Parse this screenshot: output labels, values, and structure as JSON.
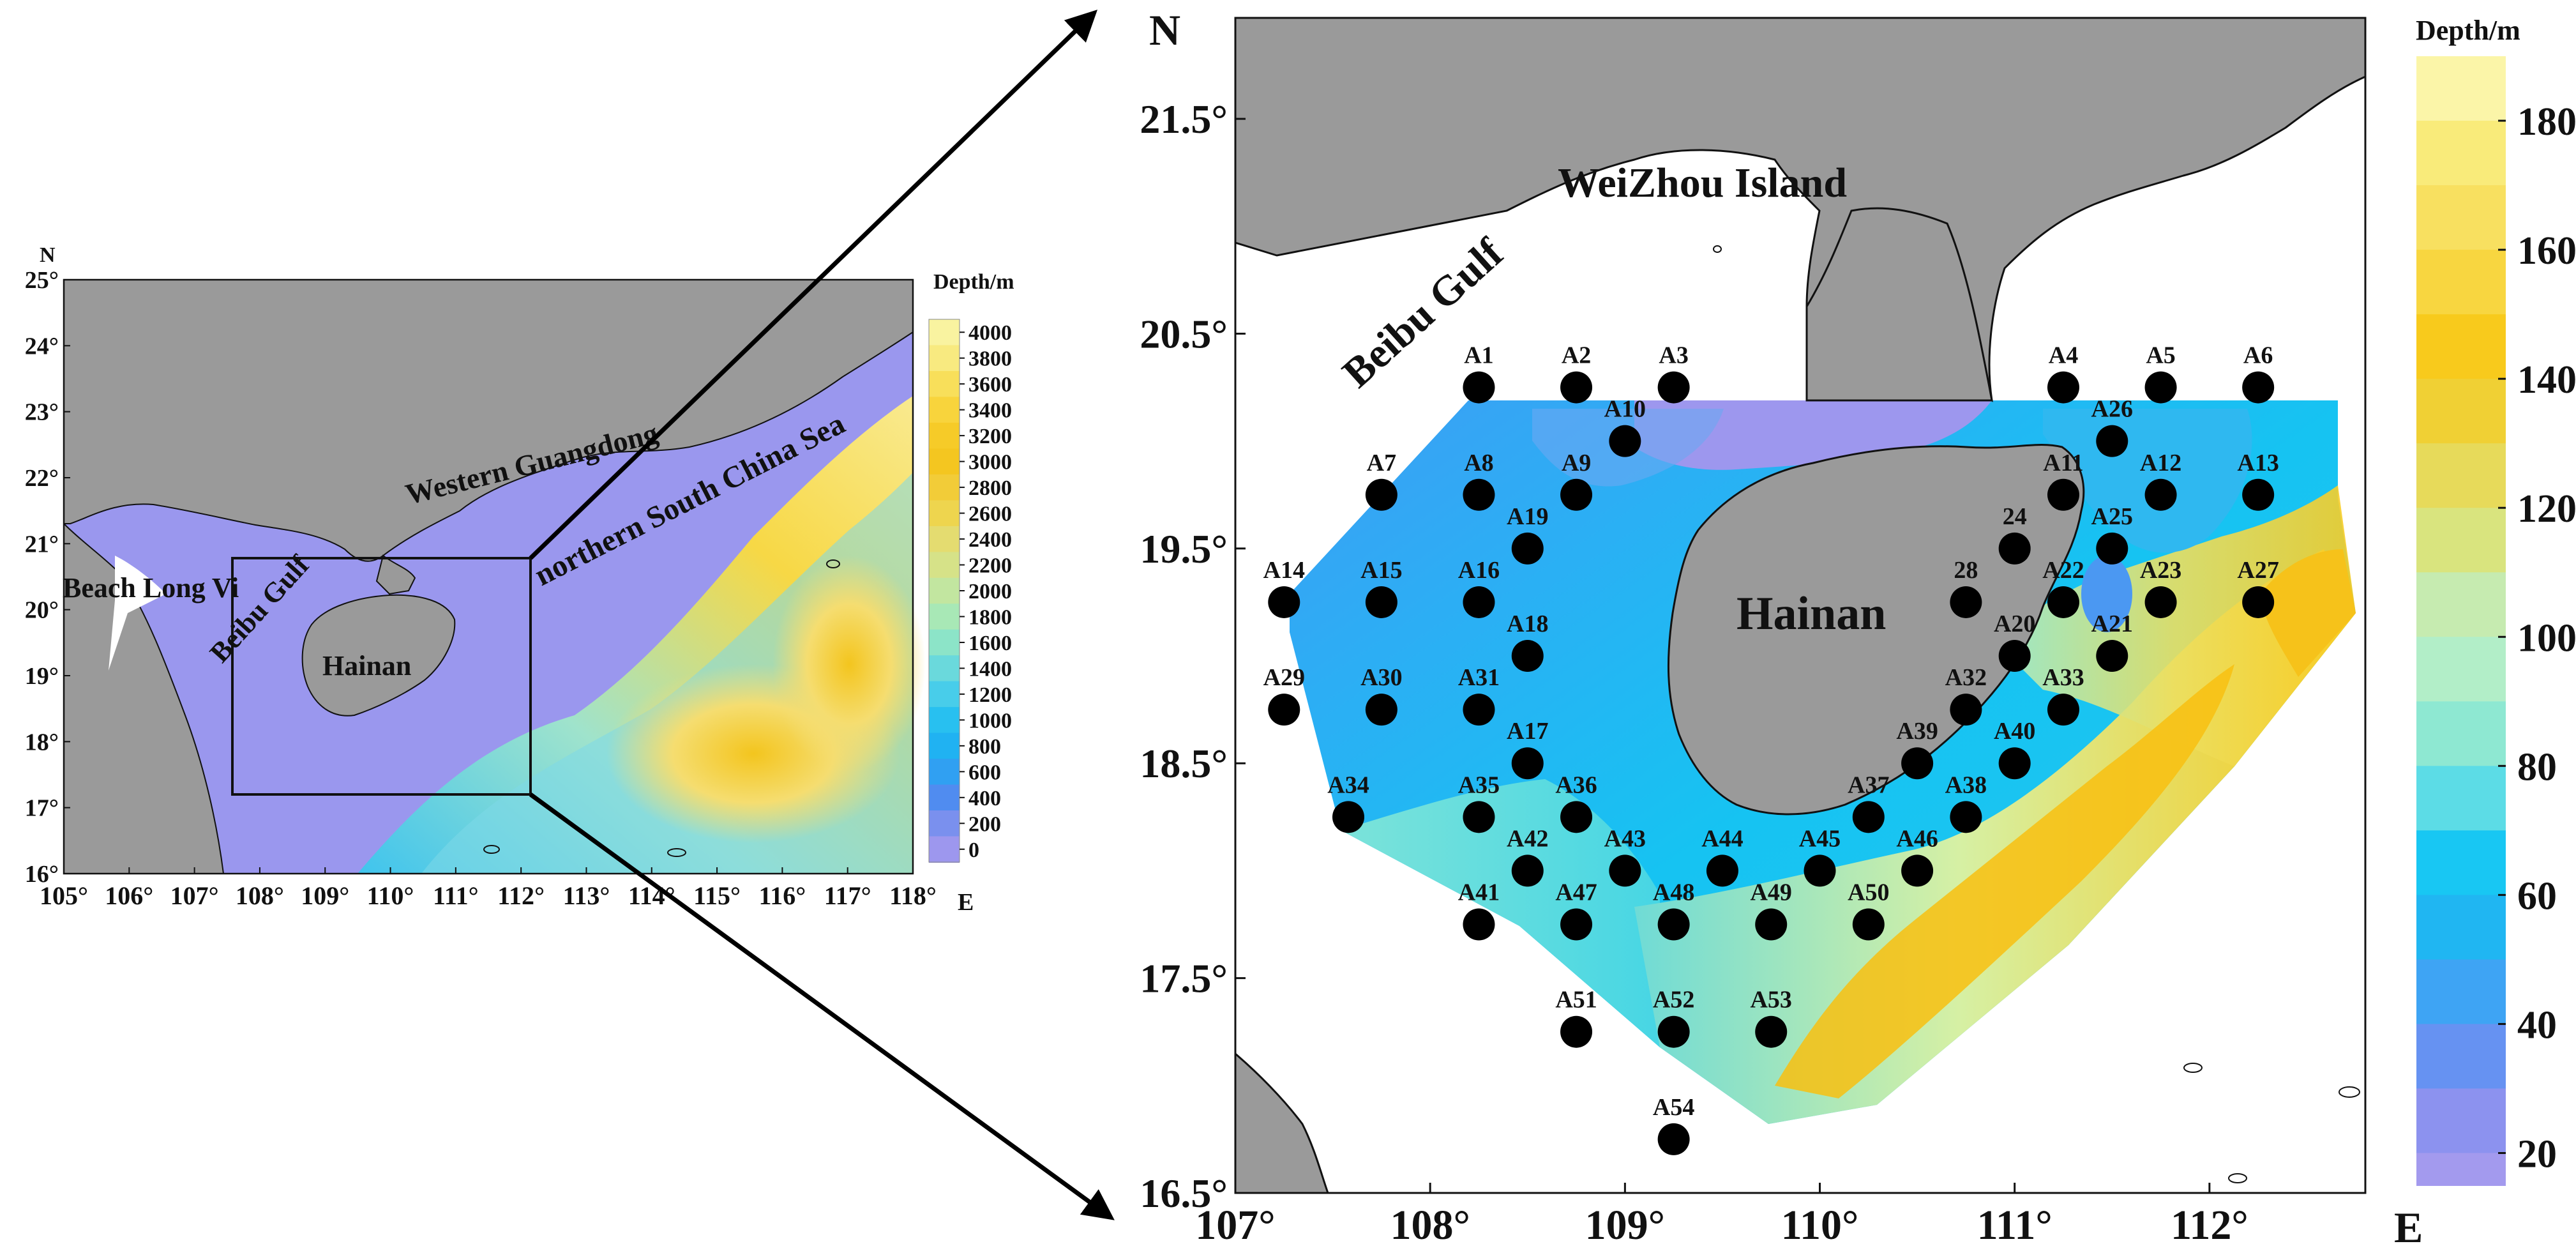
{
  "overview_map": {
    "north_label": "N",
    "east_label": "E",
    "x_ticks": [
      "105°",
      "106°",
      "107°",
      "108°",
      "109°",
      "110°",
      "111°",
      "112°",
      "113°",
      "114°",
      "115°",
      "116°",
      "117°",
      "118°"
    ],
    "y_ticks": [
      "25°",
      "24°",
      "23°",
      "22°",
      "21°",
      "20°",
      "19°",
      "18°",
      "17°",
      "16°"
    ],
    "labels": {
      "beach": "Beach Long Vi",
      "gulf": "Beibu Gulf",
      "island": "Hainan",
      "guangdong": "Western Guangdong",
      "scs": "northern South China Sea"
    },
    "colorbar": {
      "title": "Depth/m",
      "ticks": [
        "4000",
        "3800",
        "3600",
        "3400",
        "3200",
        "3000",
        "2800",
        "2600",
        "2400",
        "2200",
        "2000",
        "1800",
        "1600",
        "1400",
        "1200",
        "1000",
        "800",
        "600",
        "400",
        "200",
        "0"
      ]
    }
  },
  "detail_map": {
    "north_label": "N",
    "east_label": "E",
    "x_ticks": [
      "107°",
      "108°",
      "109°",
      "110°",
      "111°",
      "112°"
    ],
    "y_ticks": [
      "21.5°",
      "20.5°",
      "19.5°",
      "18.5°",
      "17.5°",
      "16.5°"
    ],
    "labels": {
      "gulf": "Beibu Gulf",
      "weizhou": "WeiZhou Island",
      "island": "Hainan"
    },
    "colorbar": {
      "title": "Depth/m",
      "ticks": [
        "180",
        "160",
        "140",
        "120",
        "100",
        "80",
        "60",
        "40",
        "20"
      ]
    },
    "stations": [
      {
        "label": "A1",
        "lon": 108.25,
        "lat": 20.25
      },
      {
        "label": "A2",
        "lon": 108.75,
        "lat": 20.25
      },
      {
        "label": "A3",
        "lon": 109.25,
        "lat": 20.25
      },
      {
        "label": "A4",
        "lon": 111.25,
        "lat": 20.25
      },
      {
        "label": "A5",
        "lon": 111.75,
        "lat": 20.25
      },
      {
        "label": "A6",
        "lon": 112.25,
        "lat": 20.25
      },
      {
        "label": "A10",
        "lon": 109.0,
        "lat": 20.0
      },
      {
        "label": "A26",
        "lon": 111.5,
        "lat": 20.0
      },
      {
        "label": "A7",
        "lon": 107.75,
        "lat": 19.75
      },
      {
        "label": "A8",
        "lon": 108.25,
        "lat": 19.75
      },
      {
        "label": "A9",
        "lon": 108.75,
        "lat": 19.75
      },
      {
        "label": "A11",
        "lon": 111.25,
        "lat": 19.75
      },
      {
        "label": "A12",
        "lon": 111.75,
        "lat": 19.75
      },
      {
        "label": "A13",
        "lon": 112.25,
        "lat": 19.75
      },
      {
        "label": "A19",
        "lon": 108.5,
        "lat": 19.5
      },
      {
        "label": "24",
        "lon": 111.0,
        "lat": 19.5
      },
      {
        "label": "A25",
        "lon": 111.5,
        "lat": 19.5
      },
      {
        "label": "A14",
        "lon": 107.25,
        "lat": 19.25
      },
      {
        "label": "A15",
        "lon": 107.75,
        "lat": 19.25
      },
      {
        "label": "A16",
        "lon": 108.25,
        "lat": 19.25
      },
      {
        "label": "28",
        "lon": 110.75,
        "lat": 19.25
      },
      {
        "label": "A22",
        "lon": 111.25,
        "lat": 19.25
      },
      {
        "label": "A23",
        "lon": 111.75,
        "lat": 19.25
      },
      {
        "label": "A27",
        "lon": 112.25,
        "lat": 19.25
      },
      {
        "label": "A18",
        "lon": 108.5,
        "lat": 19.0
      },
      {
        "label": "A20",
        "lon": 111.0,
        "lat": 19.0
      },
      {
        "label": "A21",
        "lon": 111.5,
        "lat": 19.0
      },
      {
        "label": "A29",
        "lon": 107.25,
        "lat": 18.75
      },
      {
        "label": "A30",
        "lon": 107.75,
        "lat": 18.75
      },
      {
        "label": "A31",
        "lon": 108.25,
        "lat": 18.75
      },
      {
        "label": "A32",
        "lon": 110.75,
        "lat": 18.75
      },
      {
        "label": "A33",
        "lon": 111.25,
        "lat": 18.75
      },
      {
        "label": "A17",
        "lon": 108.5,
        "lat": 18.5
      },
      {
        "label": "A39",
        "lon": 110.5,
        "lat": 18.5
      },
      {
        "label": "A40",
        "lon": 111.0,
        "lat": 18.5
      },
      {
        "label": "A34",
        "lon": 107.58,
        "lat": 18.25
      },
      {
        "label": "A35",
        "lon": 108.25,
        "lat": 18.25
      },
      {
        "label": "A36",
        "lon": 108.75,
        "lat": 18.25
      },
      {
        "label": "A37",
        "lon": 110.25,
        "lat": 18.25
      },
      {
        "label": "A38",
        "lon": 110.75,
        "lat": 18.25
      },
      {
        "label": "A42",
        "lon": 108.5,
        "lat": 18.0
      },
      {
        "label": "A43",
        "lon": 109.0,
        "lat": 18.0
      },
      {
        "label": "A44",
        "lon": 109.5,
        "lat": 18.0
      },
      {
        "label": "A45",
        "lon": 110.0,
        "lat": 18.0
      },
      {
        "label": "A46",
        "lon": 110.5,
        "lat": 18.0
      },
      {
        "label": "A41",
        "lon": 108.25,
        "lat": 17.75
      },
      {
        "label": "A47",
        "lon": 108.75,
        "lat": 17.75
      },
      {
        "label": "A48",
        "lon": 109.25,
        "lat": 17.75
      },
      {
        "label": "A49",
        "lon": 109.75,
        "lat": 17.75
      },
      {
        "label": "A50",
        "lon": 110.25,
        "lat": 17.75
      },
      {
        "label": "A51",
        "lon": 108.75,
        "lat": 17.25
      },
      {
        "label": "A52",
        "lon": 109.25,
        "lat": 17.25
      },
      {
        "label": "A53",
        "lon": 109.75,
        "lat": 17.25
      },
      {
        "label": "A54",
        "lon": 109.25,
        "lat": 16.75
      }
    ]
  },
  "colors": {
    "land": "#9a9a9a",
    "sea_shallow": "#9a97ee",
    "sea_mid": "#22c3ee",
    "sea_deep": "#fbd02a",
    "station": "#000000"
  }
}
